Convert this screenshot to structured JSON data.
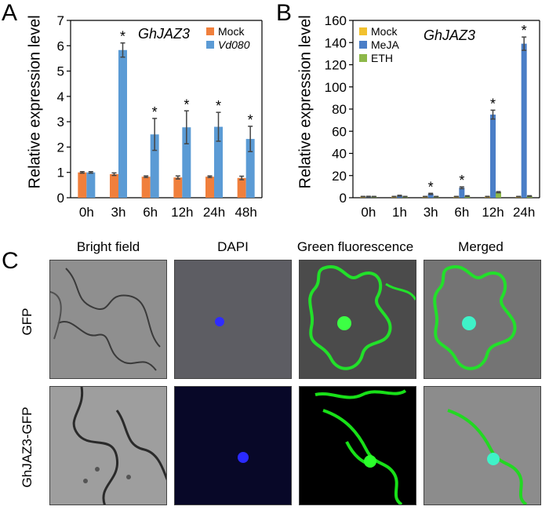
{
  "panel_labels": {
    "a": "A",
    "b": "B",
    "c": "C"
  },
  "chart_data": [
    {
      "type": "bar",
      "title": "GhJAZ3",
      "xlabel": "",
      "ylabel": "Relative expression level",
      "categories": [
        "0h",
        "3h",
        "6h",
        "12h",
        "24h",
        "48h"
      ],
      "ylim": [
        0,
        7
      ],
      "yticks": [
        0,
        1,
        2,
        3,
        4,
        5,
        6,
        7
      ],
      "legend": "top-right",
      "series": [
        {
          "name": "Mock",
          "color": "#F07F3C",
          "values": [
            1.0,
            0.93,
            0.83,
            0.8,
            0.83,
            0.78
          ],
          "errors": [
            0.03,
            0.05,
            0.03,
            0.06,
            0.03,
            0.07
          ]
        },
        {
          "name": "Vd080",
          "color": "#5B9BD5",
          "values": [
            1.0,
            5.83,
            2.5,
            2.78,
            2.8,
            2.32
          ],
          "errors": [
            0.03,
            0.28,
            0.63,
            0.65,
            0.57,
            0.5
          ]
        }
      ],
      "significance": {
        "marker": "*",
        "categories": [
          "3h",
          "6h",
          "12h",
          "24h",
          "48h"
        ]
      }
    },
    {
      "type": "bar",
      "title": "GhJAZ3",
      "xlabel": "",
      "ylabel": "Relative expression level",
      "categories": [
        "0h",
        "1h",
        "3h",
        "6h",
        "12h",
        "24h"
      ],
      "ylim": [
        0,
        160
      ],
      "yticks": [
        0,
        20,
        40,
        60,
        80,
        100,
        120,
        140,
        160
      ],
      "legend": "top-left",
      "series": [
        {
          "name": "Mock",
          "color": "#F2C12E",
          "values": [
            1,
            1,
            1,
            1,
            1,
            1
          ],
          "errors": [
            0.2,
            0.2,
            0.2,
            0.2,
            0.2,
            0.2
          ]
        },
        {
          "name": "MeJA",
          "color": "#4A7EC7",
          "values": [
            1,
            1.8,
            3.5,
            9.0,
            75,
            139
          ],
          "errors": [
            0.3,
            0.4,
            0.5,
            0.8,
            4.0,
            6.0
          ]
        },
        {
          "name": "ETH",
          "color": "#8DB849",
          "values": [
            1,
            1,
            1,
            1.5,
            5,
            1.5
          ],
          "errors": [
            0.2,
            0.2,
            0.2,
            0.3,
            0.5,
            0.3
          ]
        }
      ],
      "significance": {
        "marker": "*",
        "categories": [
          "3h",
          "6h",
          "12h",
          "24h"
        ]
      }
    }
  ],
  "images": {
    "column_titles": [
      "Bright field",
      "DAPI",
      "Green fluorescence",
      "Merged"
    ],
    "row_labels": [
      "GFP",
      "GhJAZ3-GFP"
    ]
  }
}
